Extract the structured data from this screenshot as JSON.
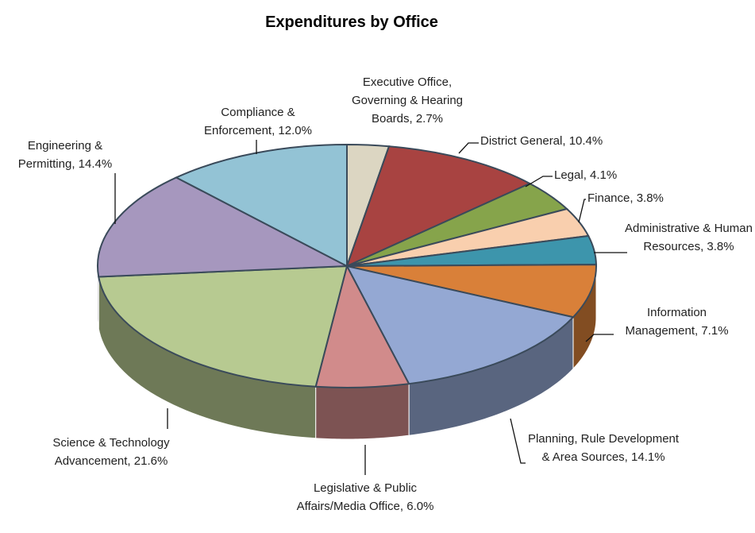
{
  "chart_data": {
    "type": "pie",
    "title": "Expenditures by Office",
    "values": [
      2.7,
      10.4,
      4.1,
      3.8,
      3.8,
      7.1,
      14.1,
      6.0,
      21.6,
      14.4,
      12.0
    ],
    "value_labels": [
      "Executive Office, Governing & Hearing Boards, 2.7%",
      "District General, 10.4%",
      "Legal, 4.1%",
      "Finance, 3.8%",
      "Administrative & Human Resources, 3.8%",
      "Information Management, 7.1%",
      "Planning, Rule Development & Area Sources, 14.1%",
      "Legislative & Public Affairs/Media Office, 6.0%",
      "Science & Technology Advancement, 21.6%",
      "Engineering & Permitting, 14.4%",
      "Compliance & Enforcement, 12.0%"
    ],
    "colors": [
      "#dcd6c2",
      "#a84341",
      "#86a44b",
      "#f9cfae",
      "#3d95ac",
      "#d98039",
      "#94a8d3",
      "#d18b8b",
      "#b7ca91",
      "#a697be",
      "#93c3d5"
    ]
  }
}
